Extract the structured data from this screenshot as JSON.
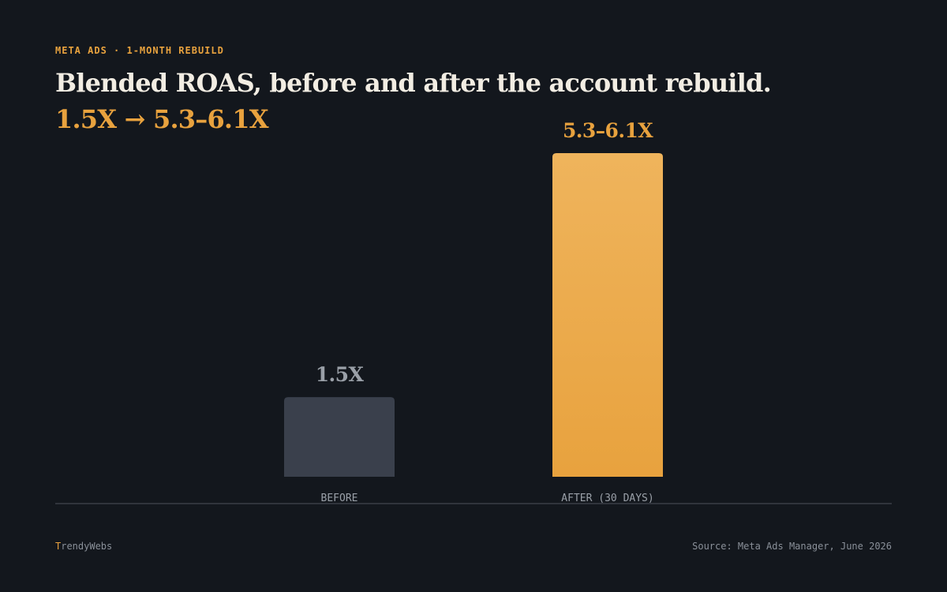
{
  "header": {
    "eyebrow": "META ADS · 1-MONTH REBUILD",
    "title": "Blended ROAS, before and after the account rebuild.",
    "subtitle": "1.5X → 5.3–6.1X"
  },
  "footer": {
    "brand_initial": "T",
    "brand_rest": "rendyWebs",
    "source": "Source: Meta Ads Manager, June 2026"
  },
  "colors": {
    "background": "#13171d",
    "accent": "#e8a23e",
    "before_bar": "#3a404c",
    "before_label": "#9aa0a8",
    "axis": "#3a3f47",
    "tick": "#9aa0a8"
  },
  "chart_data": {
    "type": "bar",
    "categories": [
      "BEFORE",
      "AFTER (30 DAYS)"
    ],
    "values": [
      1.5,
      6.1
    ],
    "value_labels": [
      "1.5X",
      "5.3–6.1X"
    ],
    "ylim": [
      0,
      6.1
    ],
    "grid": false,
    "legend": "none"
  }
}
